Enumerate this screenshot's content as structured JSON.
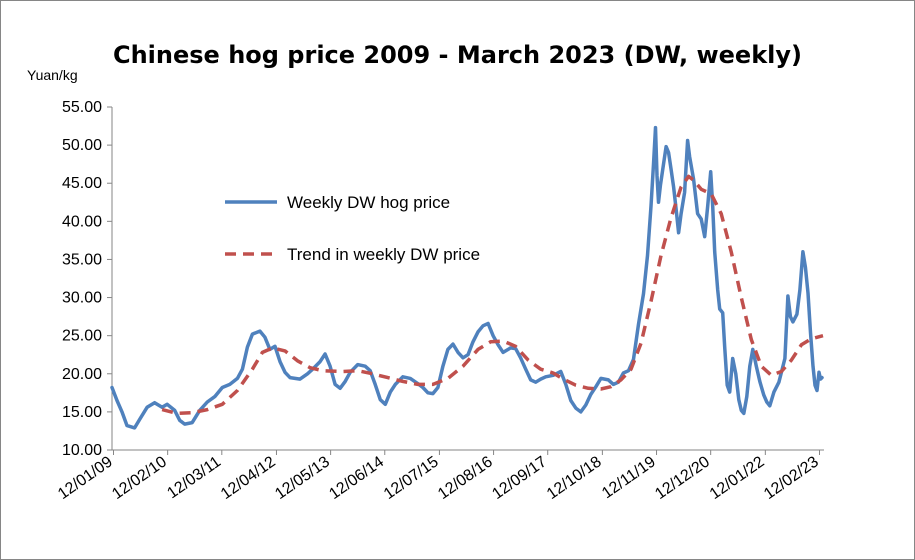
{
  "chart_data": {
    "type": "line",
    "title": "Chinese hog price 2009 - March 2023 (DW, weekly)",
    "ylabel": "Yuan/kg",
    "ylim": [
      10,
      55
    ],
    "yticks": [
      "10.00",
      "15.00",
      "20.00",
      "25.00",
      "30.00",
      "35.00",
      "40.00",
      "45.00",
      "50.00",
      "55.00"
    ],
    "xlim": [
      2009.0,
      2023.2
    ],
    "xticks": [
      {
        "label": "12/01/09",
        "x": 2009.03
      },
      {
        "label": "12/02/10",
        "x": 2010.11
      },
      {
        "label": "12/03/11",
        "x": 2011.19
      },
      {
        "label": "12/04/12",
        "x": 2012.28
      },
      {
        "label": "12/05/13",
        "x": 2013.36
      },
      {
        "label": "12/06/14",
        "x": 2014.44
      },
      {
        "label": "12/07/15",
        "x": 2015.53
      },
      {
        "label": "12/08/16",
        "x": 2016.61
      },
      {
        "label": "12/09/17",
        "x": 2017.69
      },
      {
        "label": "12/10/18",
        "x": 2018.78
      },
      {
        "label": "12/11/19",
        "x": 2019.86
      },
      {
        "label": "12/12/20",
        "x": 2020.94
      },
      {
        "label": "12/01/22",
        "x": 2022.03
      },
      {
        "label": "12/02/23",
        "x": 2023.11
      }
    ],
    "legend_position": "upper-left",
    "series": [
      {
        "name": "Weekly DW hog price",
        "style": "solid",
        "color": "#4F81BD",
        "points": [
          [
            2009.0,
            18.2
          ],
          [
            2009.1,
            16.5
          ],
          [
            2009.2,
            15.0
          ],
          [
            2009.3,
            13.2
          ],
          [
            2009.45,
            12.9
          ],
          [
            2009.55,
            14.0
          ],
          [
            2009.7,
            15.6
          ],
          [
            2009.85,
            16.2
          ],
          [
            2010.0,
            15.6
          ],
          [
            2010.1,
            16.0
          ],
          [
            2010.25,
            15.2
          ],
          [
            2010.35,
            13.9
          ],
          [
            2010.45,
            13.4
          ],
          [
            2010.6,
            13.6
          ],
          [
            2010.75,
            15.2
          ],
          [
            2010.9,
            16.3
          ],
          [
            2011.05,
            17.0
          ],
          [
            2011.2,
            18.2
          ],
          [
            2011.35,
            18.6
          ],
          [
            2011.5,
            19.4
          ],
          [
            2011.6,
            20.6
          ],
          [
            2011.7,
            23.5
          ],
          [
            2011.8,
            25.2
          ],
          [
            2011.95,
            25.6
          ],
          [
            2012.05,
            24.8
          ],
          [
            2012.15,
            23.2
          ],
          [
            2012.25,
            23.6
          ],
          [
            2012.35,
            21.6
          ],
          [
            2012.45,
            20.2
          ],
          [
            2012.55,
            19.5
          ],
          [
            2012.75,
            19.3
          ],
          [
            2012.9,
            20.0
          ],
          [
            2013.0,
            20.6
          ],
          [
            2013.15,
            21.6
          ],
          [
            2013.25,
            22.6
          ],
          [
            2013.35,
            21.0
          ],
          [
            2013.45,
            18.6
          ],
          [
            2013.55,
            18.1
          ],
          [
            2013.65,
            19.0
          ],
          [
            2013.75,
            20.2
          ],
          [
            2013.9,
            21.2
          ],
          [
            2014.05,
            21.0
          ],
          [
            2014.15,
            20.4
          ],
          [
            2014.25,
            18.6
          ],
          [
            2014.35,
            16.6
          ],
          [
            2014.45,
            16.0
          ],
          [
            2014.55,
            17.6
          ],
          [
            2014.65,
            18.6
          ],
          [
            2014.8,
            19.6
          ],
          [
            2014.95,
            19.4
          ],
          [
            2015.1,
            18.7
          ],
          [
            2015.2,
            18.2
          ],
          [
            2015.3,
            17.5
          ],
          [
            2015.4,
            17.4
          ],
          [
            2015.5,
            18.2
          ],
          [
            2015.6,
            21.0
          ],
          [
            2015.7,
            23.2
          ],
          [
            2015.8,
            23.9
          ],
          [
            2015.9,
            22.8
          ],
          [
            2016.0,
            22.1
          ],
          [
            2016.1,
            22.5
          ],
          [
            2016.2,
            24.2
          ],
          [
            2016.3,
            25.5
          ],
          [
            2016.4,
            26.3
          ],
          [
            2016.5,
            26.6
          ],
          [
            2016.6,
            25.0
          ],
          [
            2016.7,
            23.8
          ],
          [
            2016.8,
            22.8
          ],
          [
            2016.95,
            23.4
          ],
          [
            2017.05,
            23.3
          ],
          [
            2017.15,
            22.1
          ],
          [
            2017.25,
            20.6
          ],
          [
            2017.35,
            19.2
          ],
          [
            2017.45,
            18.9
          ],
          [
            2017.55,
            19.3
          ],
          [
            2017.65,
            19.6
          ],
          [
            2017.8,
            19.8
          ],
          [
            2017.95,
            20.3
          ],
          [
            2018.05,
            18.6
          ],
          [
            2018.15,
            16.5
          ],
          [
            2018.25,
            15.5
          ],
          [
            2018.35,
            15.0
          ],
          [
            2018.45,
            15.9
          ],
          [
            2018.55,
            17.3
          ],
          [
            2018.65,
            18.3
          ],
          [
            2018.75,
            19.4
          ],
          [
            2018.9,
            19.2
          ],
          [
            2019.0,
            18.6
          ],
          [
            2019.1,
            18.9
          ],
          [
            2019.2,
            20.1
          ],
          [
            2019.3,
            20.4
          ],
          [
            2019.4,
            21.9
          ],
          [
            2019.5,
            26.5
          ],
          [
            2019.6,
            30.5
          ],
          [
            2019.68,
            35.5
          ],
          [
            2019.75,
            42.0
          ],
          [
            2019.8,
            47.5
          ],
          [
            2019.84,
            52.3
          ],
          [
            2019.87,
            46.0
          ],
          [
            2019.9,
            42.5
          ],
          [
            2019.94,
            44.8
          ],
          [
            2020.0,
            47.5
          ],
          [
            2020.05,
            49.8
          ],
          [
            2020.1,
            49.0
          ],
          [
            2020.15,
            46.8
          ],
          [
            2020.2,
            44.5
          ],
          [
            2020.25,
            41.6
          ],
          [
            2020.3,
            38.5
          ],
          [
            2020.35,
            41.0
          ],
          [
            2020.42,
            43.8
          ],
          [
            2020.48,
            50.6
          ],
          [
            2020.52,
            48.5
          ],
          [
            2020.6,
            45.5
          ],
          [
            2020.68,
            41.0
          ],
          [
            2020.75,
            40.3
          ],
          [
            2020.82,
            38.0
          ],
          [
            2020.88,
            42.0
          ],
          [
            2020.94,
            46.5
          ],
          [
            2020.98,
            42.0
          ],
          [
            2021.02,
            36.0
          ],
          [
            2021.08,
            31.0
          ],
          [
            2021.12,
            28.5
          ],
          [
            2021.18,
            28.0
          ],
          [
            2021.22,
            23.5
          ],
          [
            2021.27,
            18.5
          ],
          [
            2021.32,
            17.6
          ],
          [
            2021.38,
            22.0
          ],
          [
            2021.44,
            20.0
          ],
          [
            2021.5,
            16.6
          ],
          [
            2021.55,
            15.2
          ],
          [
            2021.6,
            14.8
          ],
          [
            2021.66,
            17.0
          ],
          [
            2021.72,
            21.0
          ],
          [
            2021.78,
            23.2
          ],
          [
            2021.85,
            21.0
          ],
          [
            2021.92,
            19.0
          ],
          [
            2022.0,
            17.2
          ],
          [
            2022.06,
            16.3
          ],
          [
            2022.12,
            15.8
          ],
          [
            2022.2,
            17.6
          ],
          [
            2022.3,
            18.9
          ],
          [
            2022.42,
            22.0
          ],
          [
            2022.48,
            30.2
          ],
          [
            2022.53,
            27.5
          ],
          [
            2022.58,
            26.8
          ],
          [
            2022.66,
            27.8
          ],
          [
            2022.72,
            31.0
          ],
          [
            2022.78,
            36.0
          ],
          [
            2022.83,
            34.0
          ],
          [
            2022.88,
            30.6
          ],
          [
            2022.93,
            25.4
          ],
          [
            2022.98,
            21.0
          ],
          [
            2023.02,
            18.5
          ],
          [
            2023.06,
            17.8
          ],
          [
            2023.1,
            20.2
          ],
          [
            2023.13,
            19.3
          ],
          [
            2023.16,
            19.5
          ]
        ]
      },
      {
        "name": "Trend in weekly DW price",
        "style": "dashed",
        "color": "#C0504D",
        "points": [
          [
            2010.0,
            15.3
          ],
          [
            2010.3,
            14.8
          ],
          [
            2010.6,
            14.9
          ],
          [
            2010.9,
            15.3
          ],
          [
            2011.2,
            16.0
          ],
          [
            2011.5,
            17.8
          ],
          [
            2011.8,
            20.6
          ],
          [
            2012.0,
            22.8
          ],
          [
            2012.2,
            23.4
          ],
          [
            2012.45,
            23.0
          ],
          [
            2012.7,
            21.7
          ],
          [
            2012.95,
            20.8
          ],
          [
            2013.2,
            20.4
          ],
          [
            2013.6,
            20.3
          ],
          [
            2013.9,
            20.4
          ],
          [
            2014.2,
            20.0
          ],
          [
            2014.5,
            19.5
          ],
          [
            2014.8,
            19.0
          ],
          [
            2015.1,
            18.6
          ],
          [
            2015.4,
            18.6
          ],
          [
            2015.7,
            19.4
          ],
          [
            2016.0,
            21.0
          ],
          [
            2016.3,
            23.2
          ],
          [
            2016.55,
            24.2
          ],
          [
            2016.8,
            24.3
          ],
          [
            2017.05,
            23.6
          ],
          [
            2017.3,
            21.8
          ],
          [
            2017.55,
            20.6
          ],
          [
            2017.8,
            20.1
          ],
          [
            2018.0,
            19.3
          ],
          [
            2018.25,
            18.5
          ],
          [
            2018.5,
            18.1
          ],
          [
            2018.75,
            18.0
          ],
          [
            2018.95,
            18.3
          ],
          [
            2019.15,
            19.2
          ],
          [
            2019.35,
            20.6
          ],
          [
            2019.55,
            24.0
          ],
          [
            2019.75,
            29.5
          ],
          [
            2019.95,
            35.5
          ],
          [
            2020.15,
            40.5
          ],
          [
            2020.35,
            44.5
          ],
          [
            2020.5,
            45.9
          ],
          [
            2020.6,
            45.4
          ],
          [
            2020.75,
            44.2
          ],
          [
            2020.95,
            43.6
          ],
          [
            2021.15,
            41.0
          ],
          [
            2021.35,
            36.0
          ],
          [
            2021.55,
            30.0
          ],
          [
            2021.75,
            24.5
          ],
          [
            2021.95,
            21.0
          ],
          [
            2022.15,
            19.8
          ],
          [
            2022.35,
            20.3
          ],
          [
            2022.55,
            21.8
          ],
          [
            2022.75,
            23.8
          ],
          [
            2022.95,
            24.6
          ],
          [
            2023.18,
            25.0
          ]
        ]
      }
    ]
  }
}
